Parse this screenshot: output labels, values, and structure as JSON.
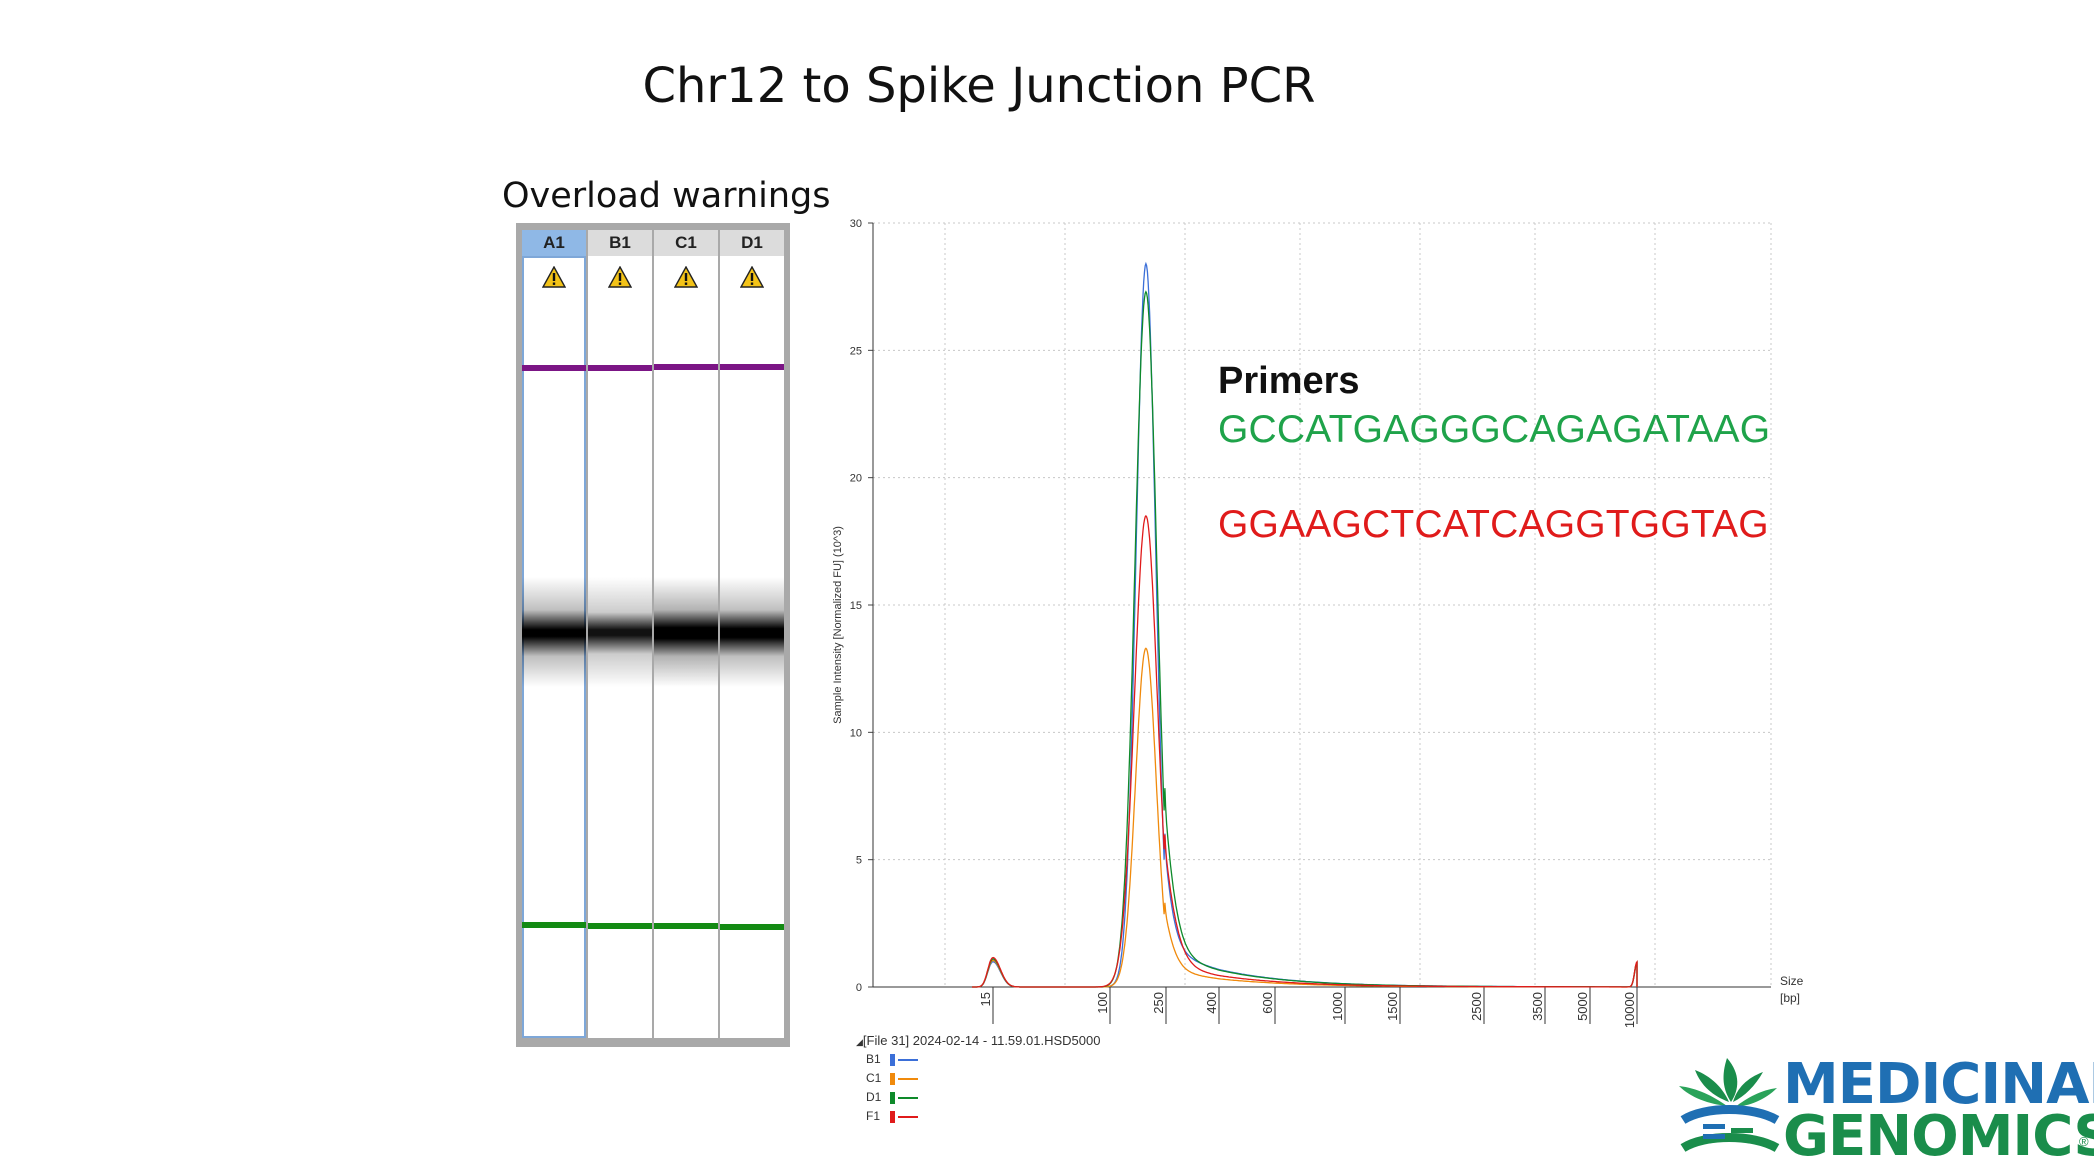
{
  "title": "Chr12 to Spike Junction PCR",
  "overload_label": "Overload warnings",
  "gel": {
    "lanes": [
      {
        "name": "A1",
        "selected": true
      },
      {
        "name": "B1",
        "selected": false
      },
      {
        "name": "C1",
        "selected": false
      },
      {
        "name": "D1",
        "selected": false
      }
    ],
    "warning_icon": "warning-triangle-icon",
    "colors": {
      "upper_marker": "#7b1585",
      "lower_marker": "#138a13",
      "band": "#000000"
    }
  },
  "primers": {
    "heading": "Primers",
    "forward": "GCCATGAGGGCAGAGATAAG",
    "reverse": "GGAAGCTCATCAGGTGGTAG"
  },
  "chart_data": {
    "type": "line",
    "title": "",
    "ylabel": "Sample Intensity [Normalized FU] (10^3)",
    "xlabel": "Size [bp]",
    "xlabel_line1": "Size",
    "xlabel_line2": "[bp]",
    "ylim": [
      0,
      30
    ],
    "y_ticks": [
      "0",
      "5",
      "10",
      "15",
      "20",
      "25",
      "30"
    ],
    "x_ticks": [
      "15",
      "100",
      "250",
      "400",
      "600",
      "1000",
      "1500",
      "2500",
      "3500",
      "5000",
      "10000"
    ],
    "grid": true,
    "series": [
      {
        "name": "B1",
        "color": "#3b6fd8",
        "peak_bp": 180,
        "peak_value": 28.4
      },
      {
        "name": "C1",
        "color": "#f08a0c",
        "peak_bp": 180,
        "peak_value": 13.3
      },
      {
        "name": "D1",
        "color": "#0e8a2a",
        "peak_bp": 180,
        "peak_value": 27.3
      },
      {
        "name": "F1",
        "color": "#e01b1b",
        "peak_bp": 180,
        "peak_value": 18.5
      }
    ],
    "marker_peaks": [
      {
        "bp": 15,
        "value": 1.1
      },
      {
        "bp": 10000,
        "value": 0.95
      }
    ],
    "file_label": "[File 31] 2024-02-14 - 11.59.01.HSD5000"
  },
  "logo": {
    "line1": "MEDICINAL",
    "line2": "GENOMICS",
    "reg": "®",
    "colors": {
      "blue": "#1f6fb3",
      "green": "#1a8d4b"
    }
  }
}
